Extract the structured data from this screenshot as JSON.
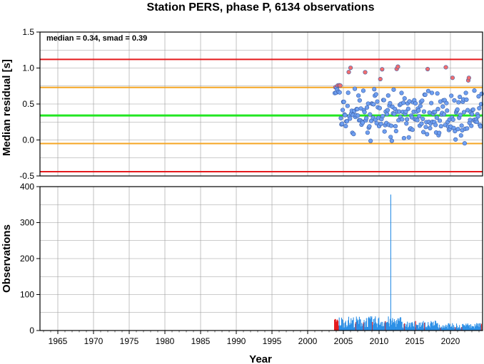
{
  "chart_data": [
    {
      "type": "scatter",
      "title": "Station PERS, phase P, 6134 observations",
      "ylabel": "Median residual [s]",
      "annotation": "median = 0.34, smad = 0.39",
      "xlim": [
        1962.5,
        2024.5
      ],
      "ylim": [
        -0.5,
        1.5
      ],
      "yticks": [
        "1.5",
        "1.0",
        "0.5",
        "0.0",
        "-0.5"
      ],
      "ytick_values": [
        1.5,
        1.0,
        0.5,
        0.0,
        -0.5
      ],
      "grid": true,
      "reference_lines": [
        {
          "name": "median",
          "value": 0.34,
          "color": "#22e622"
        },
        {
          "name": "median + 1 smad",
          "value": 0.73,
          "color": "#f5a623"
        },
        {
          "name": "median - 1 smad",
          "value": -0.05,
          "color": "#f5a623"
        },
        {
          "name": "median + 2 smad",
          "value": 1.12,
          "color": "#e41a1c"
        },
        {
          "name": "median - 2 smad",
          "value": -0.44,
          "color": "#e41a1c"
        }
      ],
      "point_colors": {
        "normal": "#6f9ff0",
        "outlier": "#f26d6d"
      },
      "outlier_rule": "points above +1 smad or below -1 smad are drawn red"
    },
    {
      "type": "bar",
      "xlabel": "Year",
      "ylabel": "Observations",
      "xlim": [
        1962.5,
        2024.5
      ],
      "ylim": [
        0,
        400
      ],
      "xticks": [
        "1965",
        "1970",
        "1975",
        "1980",
        "1985",
        "1990",
        "1995",
        "2000",
        "2005",
        "2010",
        "2015",
        "2020"
      ],
      "xtick_values": [
        1965,
        1970,
        1975,
        1980,
        1985,
        1990,
        1995,
        2000,
        2005,
        2010,
        2015,
        2020
      ],
      "yticks": [
        "400",
        "300",
        "200",
        "100",
        "0"
      ],
      "ytick_values": [
        400,
        300,
        200,
        100,
        0
      ],
      "grid": true,
      "bar_colors": {
        "normal": "#2b8fe6",
        "outlier": "#e41a1c"
      }
    }
  ]
}
